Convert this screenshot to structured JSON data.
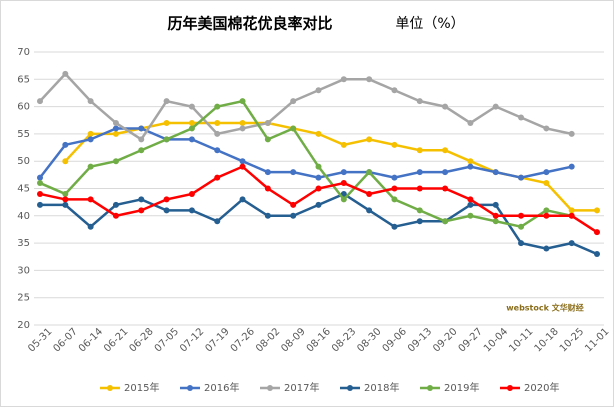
{
  "chart_data": {
    "type": "line",
    "title": "历年美国棉花优良率对比",
    "subtitle": "单位（%）",
    "watermark": "webstock 文华财经",
    "categories": [
      "05-31",
      "06-07",
      "06-14",
      "06-21",
      "06-28",
      "07-05",
      "07-12",
      "07-19",
      "07-26",
      "08-02",
      "08-09",
      "08-16",
      "08-23",
      "08-30",
      "09-06",
      "09-13",
      "09-20",
      "09-27",
      "10-04",
      "10-11",
      "10-18",
      "10-25",
      "11-01"
    ],
    "series": [
      {
        "name": "2015年",
        "color": "#f5c000",
        "values": [
          null,
          50,
          55,
          55,
          56,
          57,
          57,
          57,
          57,
          57,
          56,
          55,
          53,
          54,
          53,
          52,
          52,
          50,
          48,
          47,
          46,
          41,
          41
        ]
      },
      {
        "name": "2016年",
        "color": "#4472c4",
        "values": [
          47,
          53,
          54,
          56,
          56,
          54,
          54,
          52,
          50,
          48,
          48,
          47,
          48,
          48,
          47,
          48,
          48,
          49,
          48,
          47,
          48,
          49,
          null
        ]
      },
      {
        "name": "2017年",
        "color": "#a5a5a5",
        "values": [
          61,
          66,
          61,
          57,
          54,
          61,
          60,
          55,
          56,
          57,
          61,
          63,
          65,
          65,
          63,
          61,
          60,
          57,
          60,
          58,
          56,
          55,
          null
        ]
      },
      {
        "name": "2018年",
        "color": "#255e91",
        "values": [
          42,
          42,
          38,
          42,
          43,
          41,
          41,
          39,
          43,
          40,
          40,
          42,
          44,
          41,
          38,
          39,
          39,
          42,
          42,
          35,
          34,
          35,
          33
        ]
      },
      {
        "name": "2019年",
        "color": "#70ad47",
        "values": [
          46,
          44,
          49,
          50,
          52,
          54,
          56,
          60,
          61,
          54,
          56,
          49,
          43,
          48,
          43,
          41,
          39,
          40,
          39,
          38,
          41,
          40,
          null
        ]
      },
      {
        "name": "2020年",
        "color": "#ff0000",
        "values": [
          44,
          43,
          43,
          40,
          41,
          43,
          44,
          47,
          49,
          45,
          42,
          45,
          46,
          44,
          45,
          45,
          45,
          43,
          40,
          40,
          40,
          40,
          37
        ]
      }
    ],
    "ylim": [
      20,
      70
    ],
    "yticks": [
      20,
      25,
      30,
      35,
      40,
      45,
      50,
      55,
      60,
      65,
      70
    ],
    "grid": true,
    "legend": "bottom"
  }
}
